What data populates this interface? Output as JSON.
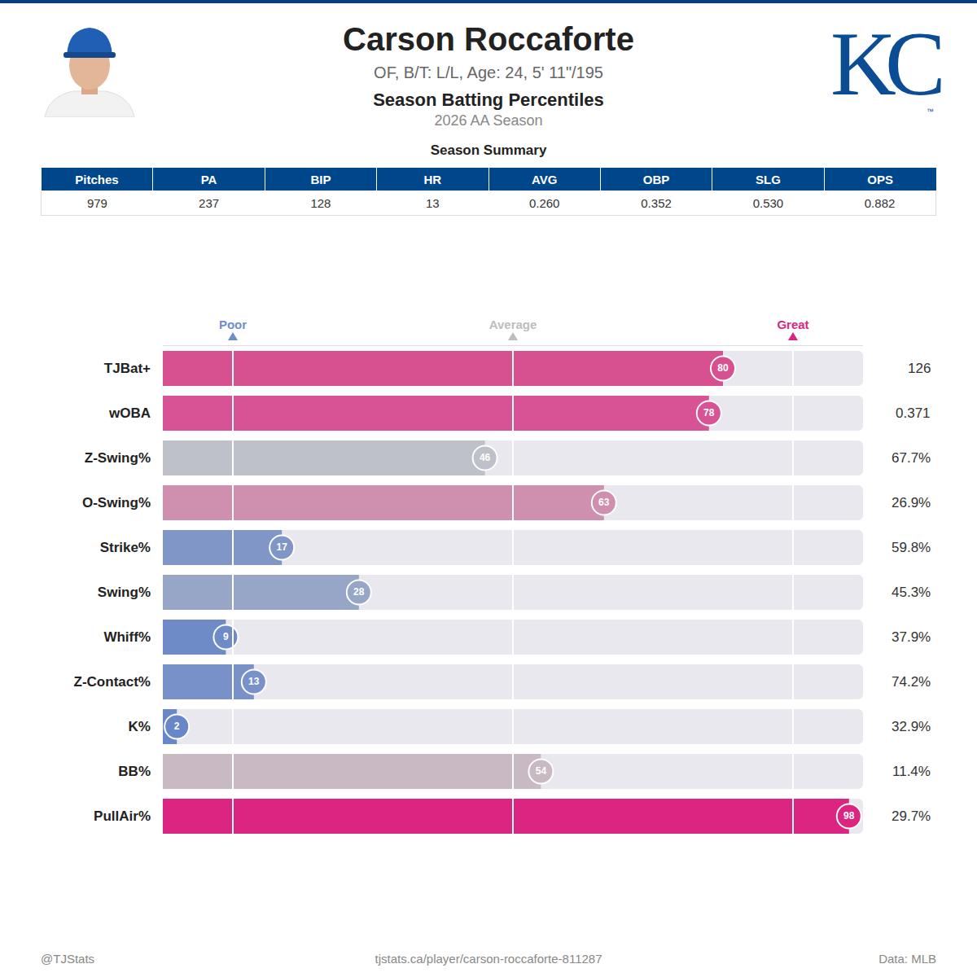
{
  "header": {
    "name": "Carson Roccaforte",
    "info": "OF, B/T: L/L, Age: 24, 5' 11\"/195",
    "title": "Season Batting Percentiles",
    "season": "2026 AA Season",
    "logo": "KC",
    "logo_mark": "™"
  },
  "table": {
    "title": "Season Summary",
    "columns": [
      "Pitches",
      "PA",
      "BIP",
      "HR",
      "AVG",
      "OBP",
      "SLG",
      "OPS"
    ],
    "rows": [
      [
        "979",
        "237",
        "128",
        "13",
        "0.260",
        "0.352",
        "0.530",
        "0.882"
      ]
    ]
  },
  "chart_data": {
    "type": "bar",
    "orientation": "horizontal",
    "categories": [
      "TJBat+",
      "wOBA",
      "Z-Swing%",
      "O-Swing%",
      "Strike%",
      "Swing%",
      "Whiff%",
      "Z-Contact%",
      "K%",
      "BB%",
      "PullAir%"
    ],
    "values": [
      80,
      78,
      46,
      63,
      17,
      28,
      9,
      13,
      2,
      54,
      98
    ],
    "stat_labels": [
      "126",
      "0.371",
      "67.7%",
      "26.9%",
      "59.8%",
      "45.3%",
      "37.9%",
      "74.2%",
      "32.9%",
      "11.4%",
      "29.7%"
    ],
    "colors": [
      "#D75191",
      "#D75395",
      "#BEC1C9",
      "#CE90AE",
      "#7F96C7",
      "#97A6C6",
      "#6E8BC7",
      "#7891C8",
      "#6887C9",
      "#C9B9C2",
      "#DC2580"
    ],
    "xlim": [
      0,
      100
    ],
    "xticks": [
      {
        "value": 10,
        "label": "Poor"
      },
      {
        "value": 50,
        "label": "Average"
      },
      {
        "value": 90,
        "label": "Great"
      }
    ],
    "grid": true,
    "data_labels": true,
    "tick_labels": true
  },
  "footer": {
    "left": "@TJStats",
    "center": "tjstats.ca/player/carson-roccaforte-811287",
    "right": "Data: MLB"
  }
}
